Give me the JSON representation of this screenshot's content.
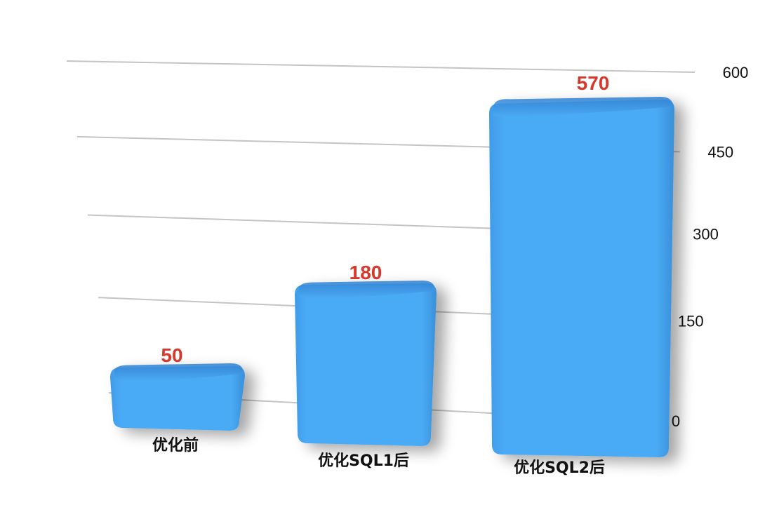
{
  "chart_data": {
    "type": "bar",
    "categories": [
      "优化前",
      "优化SQL1后",
      "优化SQL2后"
    ],
    "values": [
      50,
      180,
      570
    ],
    "ylim": [
      0,
      600
    ],
    "y_ticks": [
      "0",
      "150",
      "300",
      "450",
      "600"
    ],
    "y_axis_side": "right",
    "grid": true,
    "legend": "none",
    "colors": {
      "bar": "#4aa8f2",
      "bar_top": "#3b8fdf",
      "data_label": "#d6392b",
      "grid": "#c4c4c4"
    }
  }
}
